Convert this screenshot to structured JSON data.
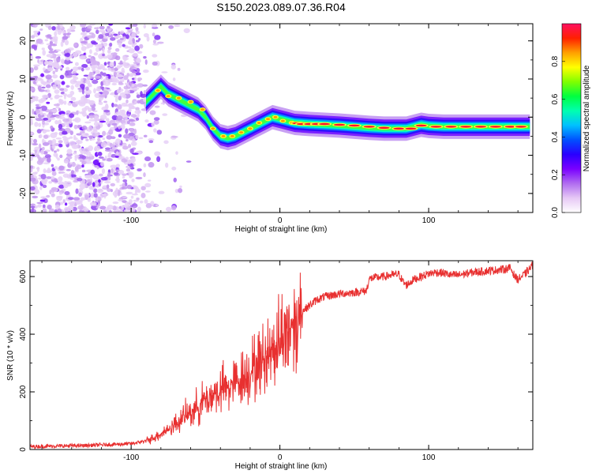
{
  "figure": {
    "title": "S150.2023.089.07.36.R04"
  },
  "chart_data": [
    {
      "type": "heatmap",
      "xlabel": "Height of straight line (km)",
      "ylabel": "Frequency (Hz)",
      "xlim": [
        -168,
        170
      ],
      "ylim": [
        -25,
        24.5
      ],
      "xticks": [
        -100,
        0,
        100
      ],
      "yticks": [
        -20,
        -10,
        0,
        10,
        20
      ],
      "colorbar": {
        "label": "Normalized spectral amplitude",
        "range": [
          0,
          1
        ],
        "ticks": [
          0.0,
          0.2,
          0.4,
          0.6,
          0.8
        ],
        "colormap": [
          "#ffffff",
          "#e6c8f5",
          "#b06cf0",
          "#7a00ff",
          "#2a00ff",
          "#0050ff",
          "#00c0ff",
          "#00ffb0",
          "#00ff40",
          "#80ff00",
          "#ffff00",
          "#ffa000",
          "#ff2000",
          "#ff1060"
        ]
      },
      "ridge": {
        "x": [
          -90,
          -85,
          -80,
          -75,
          -70,
          -65,
          -60,
          -55,
          -50,
          -45,
          -40,
          -35,
          -30,
          -25,
          -20,
          -15,
          -10,
          -5,
          0,
          5,
          10,
          20,
          30,
          40,
          50,
          60,
          70,
          80,
          85,
          90,
          95,
          100,
          110,
          120,
          130,
          140,
          150,
          160,
          168
        ],
        "y": [
          4,
          6,
          8,
          6,
          5,
          4,
          3,
          2,
          0,
          -3,
          -5,
          -5.5,
          -5,
          -4,
          -3,
          -2,
          -1,
          0,
          -0.5,
          -1,
          -1.5,
          -1.8,
          -2,
          -2.2,
          -2.5,
          -2.8,
          -3,
          -3,
          -3,
          -2.5,
          -2,
          -2.3,
          -2.5,
          -2.5,
          -2.5,
          -2.5,
          -2.5,
          -2.5,
          -2.5
        ]
      },
      "ridge_peak": {
        "x": [
          -82,
          -75,
          -68,
          -60,
          -52,
          -45,
          -38,
          -32,
          -26,
          -20,
          -14,
          -8,
          -3,
          2,
          8,
          12,
          15,
          20,
          25,
          30,
          40,
          50,
          60,
          70,
          80,
          88,
          95,
          105,
          115,
          125,
          135,
          145,
          155,
          162
        ],
        "y": [
          7,
          5.5,
          5,
          4,
          2,
          -3,
          -5,
          -5,
          -4,
          -3,
          -1.5,
          -0.5,
          0,
          -1,
          -1.5,
          -1.6,
          -1.8,
          -1.8,
          -1.8,
          -1.8,
          -2,
          -2.2,
          -2.5,
          -2.8,
          -3,
          -3,
          -2.2,
          -2.5,
          -2.5,
          -2.5,
          -2.5,
          -2.5,
          -2.5,
          -2.5
        ]
      }
    },
    {
      "type": "line",
      "xlabel": "Height of straight line (km)",
      "ylabel": "SNR (10 * v/v)",
      "xlim": [
        -168,
        170
      ],
      "ylim": [
        0,
        655
      ],
      "xticks": [
        -100,
        0,
        100
      ],
      "yticks": [
        0,
        200,
        400,
        600
      ],
      "line_color": "#e83030",
      "series": [
        {
          "x": [
            -168,
            -150,
            -130,
            -110,
            -100,
            -95,
            -90,
            -85,
            -80,
            -75,
            -70,
            -65,
            -60,
            -55,
            -50,
            -45,
            -40,
            -35,
            -30,
            -25,
            -20,
            -15,
            -10,
            -5,
            0,
            3,
            6,
            9,
            12,
            15,
            20,
            25,
            30,
            35,
            40,
            50,
            55,
            58,
            60,
            62,
            70,
            75,
            80,
            83,
            85,
            90,
            95,
            100,
            105,
            110,
            115,
            120,
            125,
            130,
            140,
            150,
            155,
            158,
            160,
            165,
            170
          ],
          "y": [
            10,
            12,
            14,
            18,
            20,
            25,
            30,
            40,
            55,
            70,
            90,
            110,
            130,
            150,
            175,
            190,
            205,
            215,
            230,
            250,
            270,
            290,
            320,
            350,
            380,
            400,
            420,
            440,
            460,
            480,
            500,
            520,
            530,
            535,
            540,
            545,
            548,
            550,
            590,
            595,
            600,
            605,
            608,
            580,
            570,
            590,
            600,
            610,
            615,
            612,
            605,
            605,
            610,
            615,
            620,
            625,
            630,
            600,
            590,
            610,
            640
          ]
        }
      ]
    }
  ]
}
